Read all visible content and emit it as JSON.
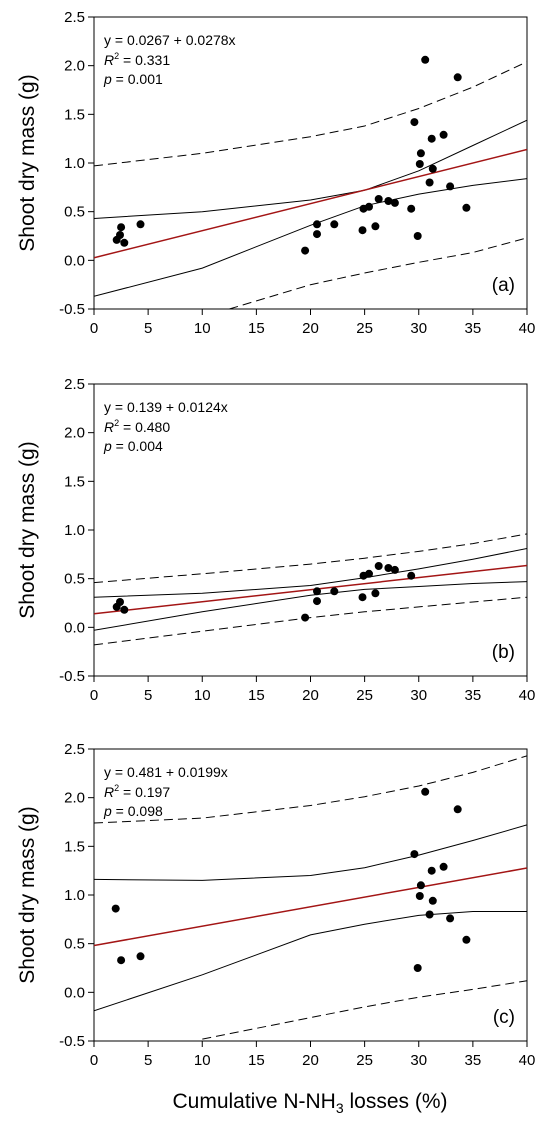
{
  "xlabel_prefix": "Cumulative N-NH",
  "xlabel_sub": "3",
  "xlabel_suffix": " losses (%)",
  "colors": {
    "regression": "#a31515",
    "bands": "#000000",
    "points": "#000000"
  },
  "chart_data": [
    {
      "type": "scatter",
      "panel_label": "(a)",
      "ylabel": "Shoot dry mass (g)",
      "xlim": [
        0,
        40
      ],
      "ylim": [
        -0.5,
        2.5
      ],
      "xticks": [
        "0",
        "5",
        "10",
        "15",
        "20",
        "25",
        "30",
        "35",
        "40"
      ],
      "yticks": [
        "-0.5",
        "0.0",
        "0.5",
        "1.0",
        "1.5",
        "2.0",
        "2.5"
      ],
      "equation": "y = 0.0267 + 0.0278x",
      "r2_label": "R",
      "r2_value": " = 0.331",
      "p_label": "p",
      "p_value": " = 0.001",
      "fit": {
        "intercept": 0.0267,
        "slope": 0.0278
      },
      "confidence_band": {
        "upper": [
          [
            0,
            0.43
          ],
          [
            10,
            0.5
          ],
          [
            20,
            0.62
          ],
          [
            25,
            0.72
          ],
          [
            30,
            0.92
          ],
          [
            35,
            1.18
          ],
          [
            40,
            1.44
          ]
        ],
        "lower": [
          [
            0,
            -0.37
          ],
          [
            10,
            -0.08
          ],
          [
            20,
            0.36
          ],
          [
            25,
            0.56
          ],
          [
            30,
            0.68
          ],
          [
            35,
            0.77
          ],
          [
            40,
            0.84
          ]
        ]
      },
      "prediction_band": {
        "upper": [
          [
            0,
            0.97
          ],
          [
            10,
            1.1
          ],
          [
            20,
            1.27
          ],
          [
            25,
            1.38
          ],
          [
            30,
            1.56
          ],
          [
            35,
            1.78
          ],
          [
            40,
            2.04
          ]
        ],
        "lower": [
          [
            12.5,
            -0.5
          ],
          [
            20,
            -0.25
          ],
          [
            25,
            -0.13
          ],
          [
            30,
            -0.02
          ],
          [
            35,
            0.08
          ],
          [
            40,
            0.23
          ]
        ]
      },
      "points": [
        [
          2.1,
          0.21
        ],
        [
          2.4,
          0.26
        ],
        [
          2.5,
          0.34
        ],
        [
          2.8,
          0.18
        ],
        [
          4.3,
          0.37
        ],
        [
          19.5,
          0.1
        ],
        [
          20.6,
          0.27
        ],
        [
          20.6,
          0.37
        ],
        [
          22.2,
          0.37
        ],
        [
          24.8,
          0.31
        ],
        [
          24.9,
          0.53
        ],
        [
          25.4,
          0.55
        ],
        [
          26.0,
          0.35
        ],
        [
          26.3,
          0.63
        ],
        [
          27.2,
          0.61
        ],
        [
          27.8,
          0.59
        ],
        [
          29.3,
          0.53
        ],
        [
          29.6,
          1.42
        ],
        [
          29.9,
          0.25
        ],
        [
          30.1,
          0.99
        ],
        [
          30.2,
          1.1
        ],
        [
          30.6,
          2.06
        ],
        [
          31.0,
          0.8
        ],
        [
          31.2,
          1.25
        ],
        [
          31.3,
          0.94
        ],
        [
          32.3,
          1.29
        ],
        [
          32.9,
          0.76
        ],
        [
          33.6,
          1.88
        ],
        [
          34.4,
          0.54
        ]
      ]
    },
    {
      "type": "scatter",
      "panel_label": "(b)",
      "ylabel": "Shoot dry mass (g)",
      "xlim": [
        0,
        40
      ],
      "ylim": [
        -0.5,
        2.5
      ],
      "xticks": [
        "0",
        "5",
        "10",
        "15",
        "20",
        "25",
        "30",
        "35",
        "40"
      ],
      "yticks": [
        "-0.5",
        "0.0",
        "0.5",
        "1.0",
        "1.5",
        "2.0",
        "2.5"
      ],
      "equation": "y = 0.139 + 0.0124x",
      "r2_label": "R",
      "r2_value": " = 0.480",
      "p_label": "p",
      "p_value": " = 0.004",
      "fit": {
        "intercept": 0.139,
        "slope": 0.0124
      },
      "confidence_band": {
        "upper": [
          [
            0,
            0.31
          ],
          [
            10,
            0.35
          ],
          [
            20,
            0.43
          ],
          [
            25,
            0.51
          ],
          [
            30,
            0.6
          ],
          [
            35,
            0.7
          ],
          [
            40,
            0.81
          ]
        ],
        "lower": [
          [
            0,
            -0.03
          ],
          [
            10,
            0.16
          ],
          [
            20,
            0.33
          ],
          [
            25,
            0.39
          ],
          [
            30,
            0.42
          ],
          [
            35,
            0.45
          ],
          [
            40,
            0.47
          ]
        ]
      },
      "prediction_band": {
        "upper": [
          [
            0,
            0.46
          ],
          [
            10,
            0.55
          ],
          [
            20,
            0.65
          ],
          [
            25,
            0.71
          ],
          [
            30,
            0.78
          ],
          [
            35,
            0.86
          ],
          [
            40,
            0.96
          ]
        ],
        "lower": [
          [
            0,
            -0.18
          ],
          [
            10,
            -0.04
          ],
          [
            20,
            0.1
          ],
          [
            25,
            0.16
          ],
          [
            30,
            0.21
          ],
          [
            35,
            0.26
          ],
          [
            40,
            0.31
          ]
        ]
      },
      "points": [
        [
          2.1,
          0.21
        ],
        [
          2.4,
          0.26
        ],
        [
          2.8,
          0.18
        ],
        [
          19.5,
          0.1
        ],
        [
          20.6,
          0.27
        ],
        [
          20.6,
          0.37
        ],
        [
          22.2,
          0.37
        ],
        [
          24.8,
          0.31
        ],
        [
          24.9,
          0.53
        ],
        [
          25.4,
          0.55
        ],
        [
          26.0,
          0.35
        ],
        [
          26.3,
          0.63
        ],
        [
          27.2,
          0.61
        ],
        [
          27.8,
          0.59
        ],
        [
          29.3,
          0.53
        ]
      ]
    },
    {
      "type": "scatter",
      "panel_label": "(c)",
      "ylabel": "Shoot dry mass (g)",
      "xlim": [
        0,
        40
      ],
      "ylim": [
        -0.5,
        2.5
      ],
      "xticks": [
        "0",
        "5",
        "10",
        "15",
        "20",
        "25",
        "30",
        "35",
        "40"
      ],
      "yticks": [
        "-0.5",
        "0.0",
        "0.5",
        "1.0",
        "1.5",
        "2.0",
        "2.5"
      ],
      "equation": "y = 0.481 + 0.0199x",
      "r2_label": "R",
      "r2_value": " = 0.197",
      "p_label": "p",
      "p_value": " = 0.098",
      "fit": {
        "intercept": 0.481,
        "slope": 0.0199
      },
      "confidence_band": {
        "upper": [
          [
            0,
            1.16
          ],
          [
            10,
            1.15
          ],
          [
            20,
            1.2
          ],
          [
            25,
            1.28
          ],
          [
            30,
            1.41
          ],
          [
            35,
            1.56
          ],
          [
            40,
            1.72
          ]
        ],
        "lower": [
          [
            0,
            -0.19
          ],
          [
            10,
            0.18
          ],
          [
            20,
            0.59
          ],
          [
            25,
            0.7
          ],
          [
            30,
            0.79
          ],
          [
            35,
            0.83
          ],
          [
            40,
            0.83
          ]
        ]
      },
      "prediction_band": {
        "upper": [
          [
            0,
            1.74
          ],
          [
            10,
            1.79
          ],
          [
            20,
            1.92
          ],
          [
            25,
            2.01
          ],
          [
            30,
            2.12
          ],
          [
            35,
            2.26
          ],
          [
            40,
            2.43
          ]
        ],
        "lower": [
          [
            10,
            -0.48
          ],
          [
            20,
            -0.26
          ],
          [
            25,
            -0.15
          ],
          [
            30,
            -0.05
          ],
          [
            35,
            0.03
          ],
          [
            40,
            0.12
          ]
        ]
      },
      "points": [
        [
          2.0,
          0.86
        ],
        [
          2.5,
          0.33
        ],
        [
          4.3,
          0.37
        ],
        [
          29.6,
          1.42
        ],
        [
          29.9,
          0.25
        ],
        [
          30.1,
          0.99
        ],
        [
          30.2,
          1.1
        ],
        [
          30.6,
          2.06
        ],
        [
          31.0,
          0.8
        ],
        [
          31.2,
          1.25
        ],
        [
          31.3,
          0.94
        ],
        [
          32.3,
          1.29
        ],
        [
          32.9,
          0.76
        ],
        [
          33.6,
          1.88
        ],
        [
          34.4,
          0.54
        ]
      ]
    }
  ]
}
